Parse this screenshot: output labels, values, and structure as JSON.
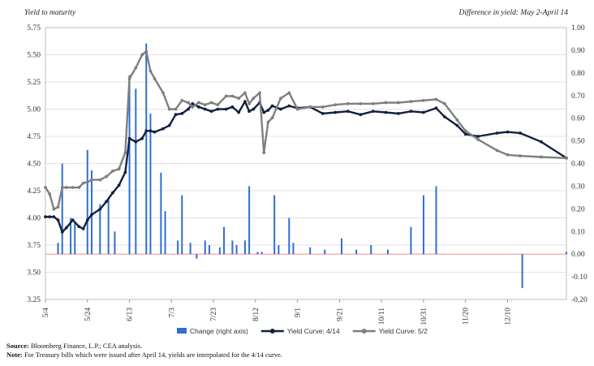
{
  "chart_data": {
    "type": "bar+line",
    "left_axis_title": "Yield to maturity",
    "right_axis_title": "Difference in yield: May 2-April 14",
    "x_ticks": [
      "5/4",
      "5/24",
      "6/13",
      "7/3",
      "7/23",
      "8/12",
      "9/1",
      "9/21",
      "10/11",
      "10/31",
      "11/20",
      "12/10"
    ],
    "x_range": [
      0,
      248
    ],
    "y_left": {
      "range": [
        3.25,
        5.75
      ],
      "ticks": [
        "5.75",
        "5.50",
        "5.25",
        "5.00",
        "4.75",
        "4.50",
        "4.25",
        "4.00",
        "3.75",
        "3.50",
        "3.25"
      ]
    },
    "y_right": {
      "range": [
        -0.2,
        1.0
      ],
      "ticks": [
        "1.00",
        "0.90",
        "0.80",
        "0.70",
        "0.60",
        "0.50",
        "0.40",
        "0.30",
        "0.20",
        "0.10",
        "0.00",
        "-0.10",
        "-0.20"
      ]
    },
    "grid": true,
    "legend_position": "bottom",
    "series": [
      {
        "name": "Change (right axis)",
        "kind": "bar",
        "axis": "right",
        "color": "#2f6fd1",
        "points": [
          [
            6,
            0.05
          ],
          [
            8,
            0.4
          ],
          [
            12,
            0.16
          ],
          [
            14,
            0.14
          ],
          [
            20,
            0.46
          ],
          [
            22,
            0.37
          ],
          [
            26,
            0.22
          ],
          [
            30,
            0.25
          ],
          [
            33,
            0.1
          ],
          [
            40,
            0.79
          ],
          [
            43,
            0.73
          ],
          [
            48,
            0.93
          ],
          [
            50,
            0.62
          ],
          [
            55,
            0.36
          ],
          [
            57,
            0.19
          ],
          [
            63,
            0.06
          ],
          [
            65,
            0.26
          ],
          [
            69,
            0.05
          ],
          [
            72,
            -0.02
          ],
          [
            76,
            0.06
          ],
          [
            78,
            0.04
          ],
          [
            83,
            0.03
          ],
          [
            85,
            0.12
          ],
          [
            89,
            0.06
          ],
          [
            91,
            0.04
          ],
          [
            95,
            0.06
          ],
          [
            97,
            0.3
          ],
          [
            101,
            0.01
          ],
          [
            103,
            0.01
          ],
          [
            109,
            0.26
          ],
          [
            111,
            0.04
          ],
          [
            116,
            0.16
          ],
          [
            118,
            0.05
          ],
          [
            126,
            0.03
          ],
          [
            133,
            0.02
          ],
          [
            141,
            0.07
          ],
          [
            148,
            0.02
          ],
          [
            155,
            0.04
          ],
          [
            163,
            0.02
          ],
          [
            174,
            0.12
          ],
          [
            180,
            0.26
          ],
          [
            186,
            0.3
          ],
          [
            227,
            -0.15
          ],
          [
            248,
            0.01
          ]
        ]
      },
      {
        "name": "Yield Curve: 4/14",
        "kind": "line",
        "axis": "left",
        "color": "#13213f",
        "points": [
          [
            0,
            4.01
          ],
          [
            2,
            4.01
          ],
          [
            4,
            4.01
          ],
          [
            6,
            3.98
          ],
          [
            8,
            3.87
          ],
          [
            10,
            3.91
          ],
          [
            13,
            3.98
          ],
          [
            16,
            3.92
          ],
          [
            18,
            3.9
          ],
          [
            20,
            3.98
          ],
          [
            22,
            4.03
          ],
          [
            26,
            4.08
          ],
          [
            29,
            4.15
          ],
          [
            32,
            4.23
          ],
          [
            35,
            4.3
          ],
          [
            38,
            4.42
          ],
          [
            40,
            4.73
          ],
          [
            43,
            4.7
          ],
          [
            46,
            4.73
          ],
          [
            48,
            4.8
          ],
          [
            50,
            4.8
          ],
          [
            52,
            4.79
          ],
          [
            56,
            4.82
          ],
          [
            59,
            4.85
          ],
          [
            62,
            4.95
          ],
          [
            65,
            4.96
          ],
          [
            68,
            5.0
          ],
          [
            70,
            5.05
          ],
          [
            73,
            5.02
          ],
          [
            76,
            5.0
          ],
          [
            79,
            4.98
          ],
          [
            82,
            5.0
          ],
          [
            86,
            5.0
          ],
          [
            89,
            5.02
          ],
          [
            92,
            4.97
          ],
          [
            95,
            5.07
          ],
          [
            97,
            4.98
          ],
          [
            99,
            5.0
          ],
          [
            102,
            5.06
          ],
          [
            104,
            4.97
          ],
          [
            106,
            4.99
          ],
          [
            108,
            5.03
          ],
          [
            112,
            5.0
          ],
          [
            116,
            5.03
          ],
          [
            120,
            5.01
          ],
          [
            126,
            5.02
          ],
          [
            132,
            4.96
          ],
          [
            138,
            4.97
          ],
          [
            144,
            4.98
          ],
          [
            150,
            4.95
          ],
          [
            156,
            4.98
          ],
          [
            162,
            4.97
          ],
          [
            168,
            4.96
          ],
          [
            174,
            4.98
          ],
          [
            180,
            4.97
          ],
          [
            186,
            5.01
          ],
          [
            190,
            4.93
          ],
          [
            196,
            4.85
          ],
          [
            200,
            4.77
          ],
          [
            206,
            4.75
          ],
          [
            215,
            4.78
          ],
          [
            220,
            4.79
          ],
          [
            226,
            4.78
          ],
          [
            236,
            4.7
          ],
          [
            248,
            4.55
          ]
        ]
      },
      {
        "name": "Yield Curve: 5/2",
        "kind": "line",
        "axis": "left",
        "color": "#7f7f7f",
        "points": [
          [
            0,
            4.28
          ],
          [
            2,
            4.22
          ],
          [
            4,
            4.08
          ],
          [
            6,
            4.1
          ],
          [
            8,
            4.28
          ],
          [
            10,
            4.28
          ],
          [
            13,
            4.28
          ],
          [
            16,
            4.28
          ],
          [
            18,
            4.32
          ],
          [
            20,
            4.33
          ],
          [
            22,
            4.35
          ],
          [
            26,
            4.35
          ],
          [
            29,
            4.38
          ],
          [
            32,
            4.43
          ],
          [
            35,
            4.45
          ],
          [
            38,
            4.6
          ],
          [
            40,
            5.28
          ],
          [
            43,
            5.38
          ],
          [
            46,
            5.5
          ],
          [
            48,
            5.53
          ],
          [
            50,
            5.35
          ],
          [
            52,
            5.28
          ],
          [
            56,
            5.15
          ],
          [
            59,
            5.0
          ],
          [
            62,
            5.0
          ],
          [
            65,
            5.08
          ],
          [
            68,
            5.06
          ],
          [
            70,
            5.02
          ],
          [
            73,
            5.06
          ],
          [
            76,
            5.04
          ],
          [
            79,
            5.06
          ],
          [
            82,
            5.04
          ],
          [
            86,
            5.12
          ],
          [
            89,
            5.12
          ],
          [
            92,
            5.1
          ],
          [
            95,
            5.15
          ],
          [
            97,
            5.05
          ],
          [
            99,
            5.1
          ],
          [
            102,
            5.15
          ],
          [
            104,
            4.6
          ],
          [
            106,
            4.88
          ],
          [
            108,
            4.92
          ],
          [
            112,
            5.1
          ],
          [
            116,
            5.15
          ],
          [
            120,
            5.0
          ],
          [
            126,
            5.02
          ],
          [
            132,
            5.02
          ],
          [
            138,
            5.04
          ],
          [
            144,
            5.05
          ],
          [
            150,
            5.05
          ],
          [
            156,
            5.05
          ],
          [
            162,
            5.06
          ],
          [
            168,
            5.06
          ],
          [
            174,
            5.07
          ],
          [
            180,
            5.08
          ],
          [
            186,
            5.09
          ],
          [
            190,
            5.05
          ],
          [
            196,
            4.9
          ],
          [
            200,
            4.8
          ],
          [
            206,
            4.72
          ],
          [
            215,
            4.62
          ],
          [
            220,
            4.58
          ],
          [
            226,
            4.57
          ],
          [
            236,
            4.56
          ],
          [
            248,
            4.55
          ]
        ]
      }
    ]
  },
  "footer": {
    "source_label": "Source:",
    "source_text": "Bloomberg Finance, L.P.; CEA analysis.",
    "note_label": "Note:",
    "note_text": "For Treasury bills which were issued after April 14, yields are interpolated for the 4/14 curve."
  }
}
